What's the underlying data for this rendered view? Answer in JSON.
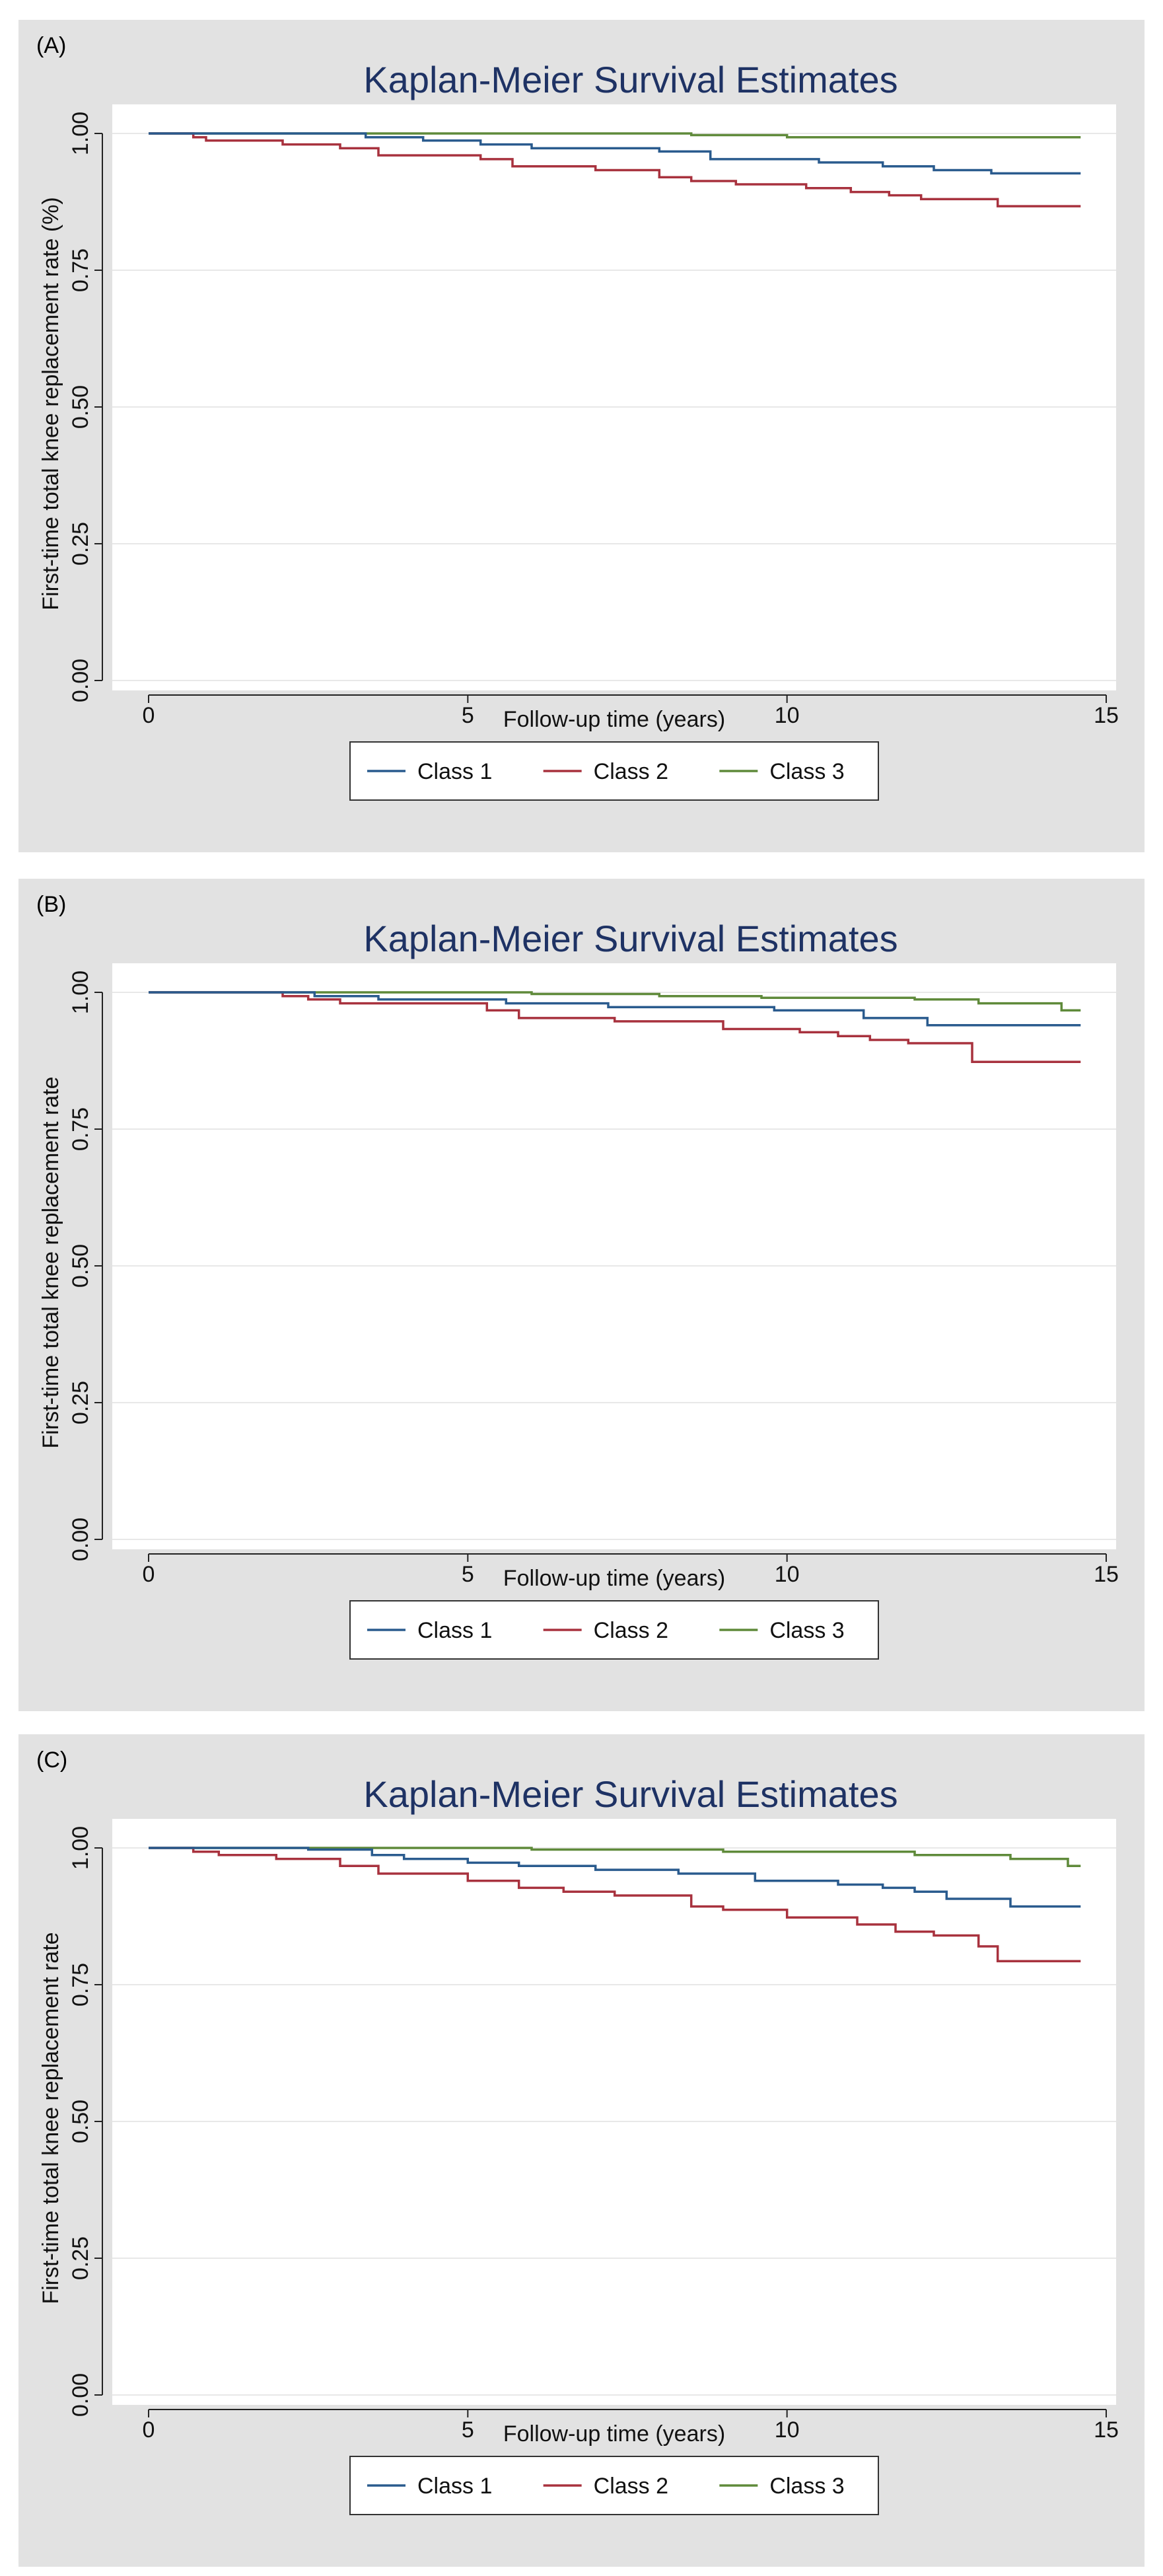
{
  "colors": {
    "class1": "#2a5b8e",
    "class2": "#a8323e",
    "class3": "#5f8a3a",
    "title": "#1e3264",
    "panel_background": "#e2e2e2",
    "plot_background": "#ffffff",
    "grid": "#e8e8e8"
  },
  "chart_data": [
    {
      "type": "line",
      "step": true,
      "panel_label": "(A)",
      "title": "Kaplan-Meier Survival Estimates",
      "xlabel": "Follow-up time (years)",
      "ylabel": "First-time total knee replacement rate (%)",
      "xlim": [
        0,
        15
      ],
      "ylim": [
        0,
        1
      ],
      "x_ticks": [
        0,
        5,
        10,
        15
      ],
      "y_ticks": [
        0.0,
        0.25,
        0.5,
        0.75,
        1.0
      ],
      "y_tick_labels": [
        "0.00",
        "0.25",
        "0.50",
        "0.75",
        "1.00"
      ],
      "grid": true,
      "legend_position": "bottom",
      "series": [
        {
          "name": "Class 1",
          "color_key": "class1",
          "x": [
            0,
            3.4,
            4.3,
            5.2,
            6.0,
            8.0,
            8.8,
            10.5,
            11.5,
            12.3,
            13.2,
            14.6
          ],
          "y": [
            1.0,
            0.993,
            0.987,
            0.98,
            0.973,
            0.967,
            0.953,
            0.947,
            0.94,
            0.933,
            0.927,
            0.927
          ]
        },
        {
          "name": "Class 2",
          "color_key": "class2",
          "x": [
            0,
            0.7,
            0.9,
            2.1,
            3.0,
            3.6,
            5.2,
            5.7,
            7.0,
            8.0,
            8.5,
            9.2,
            10.3,
            11.0,
            11.6,
            12.1,
            13.3,
            14.6
          ],
          "y": [
            1.0,
            0.993,
            0.987,
            0.98,
            0.973,
            0.96,
            0.953,
            0.94,
            0.933,
            0.92,
            0.913,
            0.907,
            0.9,
            0.893,
            0.887,
            0.88,
            0.867,
            0.867
          ]
        },
        {
          "name": "Class 3",
          "color_key": "class3",
          "x": [
            0,
            8.5,
            10.0,
            14.6
          ],
          "y": [
            1.0,
            0.997,
            0.993,
            0.993
          ]
        }
      ]
    },
    {
      "type": "line",
      "step": true,
      "panel_label": "(B)",
      "title": "Kaplan-Meier Survival Estimates",
      "xlabel": "Follow-up time (years)",
      "ylabel": "First-time total knee replacement rate",
      "xlim": [
        0,
        15
      ],
      "ylim": [
        0,
        1
      ],
      "x_ticks": [
        0,
        5,
        10,
        15
      ],
      "y_ticks": [
        0.0,
        0.25,
        0.5,
        0.75,
        1.0
      ],
      "y_tick_labels": [
        "0.00",
        "0.25",
        "0.50",
        "0.75",
        "1.00"
      ],
      "grid": true,
      "legend_position": "bottom",
      "series": [
        {
          "name": "Class 1",
          "color_key": "class1",
          "x": [
            0,
            2.6,
            3.6,
            5.6,
            7.2,
            9.8,
            11.2,
            12.2,
            14.6
          ],
          "y": [
            1.0,
            0.993,
            0.987,
            0.98,
            0.973,
            0.967,
            0.953,
            0.94,
            0.94
          ]
        },
        {
          "name": "Class 2",
          "color_key": "class2",
          "x": [
            0,
            2.1,
            2.5,
            3.0,
            5.3,
            5.8,
            7.3,
            9.0,
            10.2,
            10.8,
            11.3,
            11.9,
            12.9,
            14.6
          ],
          "y": [
            1.0,
            0.993,
            0.987,
            0.98,
            0.967,
            0.953,
            0.947,
            0.933,
            0.927,
            0.92,
            0.913,
            0.907,
            0.873,
            0.873
          ]
        },
        {
          "name": "Class 3",
          "color_key": "class3",
          "x": [
            0,
            6.0,
            8.0,
            9.6,
            12.0,
            13.0,
            14.3,
            14.6
          ],
          "y": [
            1.0,
            0.997,
            0.993,
            0.99,
            0.987,
            0.98,
            0.967,
            0.967
          ]
        }
      ]
    },
    {
      "type": "line",
      "step": true,
      "panel_label": "(C)",
      "title": "Kaplan-Meier Survival Estimates",
      "xlabel": "Follow-up time (years)",
      "ylabel": "First-time total knee replacement rate",
      "xlim": [
        0,
        15
      ],
      "ylim": [
        0,
        1
      ],
      "x_ticks": [
        0,
        5,
        10,
        15
      ],
      "y_ticks": [
        0.0,
        0.25,
        0.5,
        0.75,
        1.0
      ],
      "y_tick_labels": [
        "0.00",
        "0.25",
        "0.50",
        "0.75",
        "1.00"
      ],
      "grid": true,
      "legend_position": "bottom",
      "series": [
        {
          "name": "Class 1",
          "color_key": "class1",
          "x": [
            0,
            2.5,
            3.5,
            4.0,
            5.0,
            5.8,
            7.0,
            8.3,
            9.5,
            10.8,
            11.5,
            12.0,
            12.5,
            13.5,
            14.6
          ],
          "y": [
            1.0,
            0.997,
            0.987,
            0.98,
            0.973,
            0.967,
            0.96,
            0.953,
            0.94,
            0.933,
            0.927,
            0.92,
            0.907,
            0.893,
            0.893
          ]
        },
        {
          "name": "Class 2",
          "color_key": "class2",
          "x": [
            0,
            0.7,
            1.1,
            2.0,
            3.0,
            3.6,
            5.0,
            5.8,
            6.5,
            7.3,
            8.5,
            9.0,
            10.0,
            11.1,
            11.7,
            12.3,
            13.0,
            13.3,
            14.6
          ],
          "y": [
            1.0,
            0.993,
            0.987,
            0.98,
            0.967,
            0.953,
            0.94,
            0.927,
            0.92,
            0.913,
            0.893,
            0.887,
            0.873,
            0.86,
            0.847,
            0.84,
            0.82,
            0.793,
            0.793
          ]
        },
        {
          "name": "Class 3",
          "color_key": "class3",
          "x": [
            0,
            6.0,
            9.0,
            12.0,
            13.5,
            14.4,
            14.6
          ],
          "y": [
            1.0,
            0.997,
            0.993,
            0.987,
            0.98,
            0.967,
            0.967
          ]
        }
      ]
    }
  ]
}
